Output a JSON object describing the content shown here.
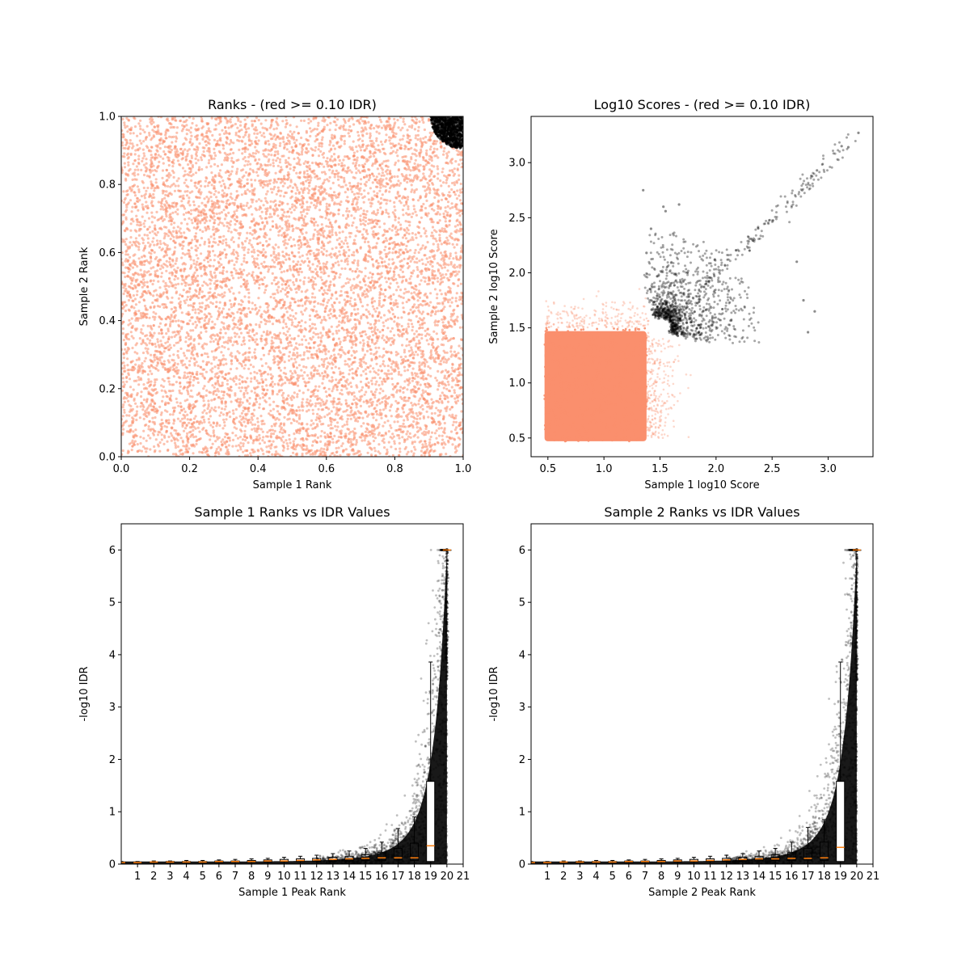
{
  "figure": {
    "background": "#ffffff",
    "colors": {
      "below_threshold": "#fa8f6d",
      "above_threshold": "#000000",
      "median": "#ff7f0e"
    }
  },
  "chart_data": [
    {
      "id": "ranks",
      "type": "scatter",
      "title": "Ranks - (red >= 0.10 IDR)",
      "xlabel": "Sample 1 Rank",
      "ylabel": "Sample 2 Rank",
      "xlim": [
        0,
        1
      ],
      "ylim": [
        0,
        1
      ],
      "xticks": [
        "0.0",
        "0.2",
        "0.4",
        "0.6",
        "0.8",
        "1.0"
      ],
      "yticks": [
        "0.0",
        "0.2",
        "0.4",
        "0.6",
        "0.8",
        "1.0"
      ],
      "grid": false,
      "series": [
        {
          "color": "#fa8f6d",
          "description_region": {
            "x": [
              0,
              1
            ],
            "y": [
              0,
              1
            ]
          }
        },
        {
          "color": "#000000",
          "description_region": {
            "corner": [
              1,
              1
            ],
            "radius": 0.09
          }
        }
      ]
    },
    {
      "id": "scores",
      "type": "scatter",
      "title": "Log10 Scores - (red >= 0.10 IDR)",
      "xlabel": "Sample 1 log10 Score",
      "ylabel": "Sample 2 log10 Score",
      "xlim": [
        0.35,
        3.4
      ],
      "ylim": [
        0.33,
        3.42
      ],
      "xticks": [
        "0.5",
        "1.0",
        "1.5",
        "2.0",
        "2.5",
        "3.0"
      ],
      "yticks": [
        "0.5",
        "1.0",
        "1.5",
        "2.0",
        "2.5",
        "3.0"
      ],
      "grid": false,
      "series": [
        {
          "color": "#fa8f6d",
          "dense_region": {
            "x": [
              0.47,
              1.38
            ],
            "y": [
              0.47,
              1.5
            ]
          }
        },
        {
          "color": "#000000",
          "region": {
            "x": [
              1.35,
              3.28
            ],
            "y": [
              1.35,
              3.28
            ]
          }
        }
      ],
      "outlier_points": [
        [
          3.27,
          3.27
        ],
        [
          3.18,
          3.14
        ],
        [
          3.12,
          3.15
        ],
        [
          2.9,
          2.93
        ],
        [
          2.85,
          2.88
        ],
        [
          2.72,
          2.1
        ],
        [
          2.82,
          1.46
        ],
        [
          2.78,
          1.75
        ],
        [
          2.88,
          1.65
        ],
        [
          1.67,
          2.62
        ],
        [
          1.55,
          2.56
        ],
        [
          1.42,
          2.4
        ],
        [
          1.38,
          2.18
        ],
        [
          1.53,
          2.6
        ],
        [
          1.35,
          2.75
        ]
      ]
    },
    {
      "id": "s1_idr",
      "type": "scatter",
      "title": "Sample 1 Ranks vs IDR Values",
      "xlabel": "Sample 1 Peak Rank",
      "ylabel": "-log10 IDR",
      "xlim": [
        0,
        21
      ],
      "ylim": [
        0,
        6.5
      ],
      "xticks": [
        "1",
        "2",
        "3",
        "4",
        "5",
        "6",
        "7",
        "8",
        "9",
        "10",
        "11",
        "12",
        "13",
        "14",
        "15",
        "16",
        "17",
        "18",
        "19",
        "20",
        "21"
      ],
      "yticks": [
        "0",
        "1",
        "2",
        "3",
        "4",
        "5",
        "6"
      ],
      "grid": false,
      "boxplots": [
        {
          "pos": 1,
          "q1": 0.02,
          "median": 0.03,
          "q3": 0.04,
          "whisker_low": 0.0,
          "whisker_high": 0.05
        },
        {
          "pos": 2,
          "q1": 0.03,
          "median": 0.03,
          "q3": 0.04,
          "whisker_low": 0.0,
          "whisker_high": 0.05
        },
        {
          "pos": 3,
          "q1": 0.03,
          "median": 0.04,
          "q3": 0.04,
          "whisker_low": 0.0,
          "whisker_high": 0.06
        },
        {
          "pos": 4,
          "q1": 0.03,
          "median": 0.04,
          "q3": 0.05,
          "whisker_low": 0.0,
          "whisker_high": 0.06
        },
        {
          "pos": 5,
          "q1": 0.03,
          "median": 0.04,
          "q3": 0.05,
          "whisker_low": 0.0,
          "whisker_high": 0.07
        },
        {
          "pos": 6,
          "q1": 0.03,
          "median": 0.04,
          "q3": 0.05,
          "whisker_low": 0.0,
          "whisker_high": 0.07
        },
        {
          "pos": 7,
          "q1": 0.03,
          "median": 0.05,
          "q3": 0.06,
          "whisker_low": 0.0,
          "whisker_high": 0.08
        },
        {
          "pos": 8,
          "q1": 0.04,
          "median": 0.05,
          "q3": 0.06,
          "whisker_low": 0.0,
          "whisker_high": 0.09
        },
        {
          "pos": 9,
          "q1": 0.04,
          "median": 0.05,
          "q3": 0.07,
          "whisker_low": 0.0,
          "whisker_high": 0.1
        },
        {
          "pos": 10,
          "q1": 0.04,
          "median": 0.06,
          "q3": 0.08,
          "whisker_low": 0.0,
          "whisker_high": 0.11
        },
        {
          "pos": 11,
          "q1": 0.05,
          "median": 0.06,
          "q3": 0.09,
          "whisker_low": 0.0,
          "whisker_high": 0.13
        },
        {
          "pos": 12,
          "q1": 0.05,
          "median": 0.07,
          "q3": 0.1,
          "whisker_low": 0.0,
          "whisker_high": 0.15
        },
        {
          "pos": 13,
          "q1": 0.05,
          "median": 0.08,
          "q3": 0.11,
          "whisker_low": 0.0,
          "whisker_high": 0.17
        },
        {
          "pos": 14,
          "q1": 0.06,
          "median": 0.09,
          "q3": 0.13,
          "whisker_low": 0.0,
          "whisker_high": 0.2
        },
        {
          "pos": 15,
          "q1": 0.06,
          "median": 0.1,
          "q3": 0.15,
          "whisker_low": 0.0,
          "whisker_high": 0.25
        },
        {
          "pos": 16,
          "q1": 0.07,
          "median": 0.11,
          "q3": 0.18,
          "whisker_low": 0.0,
          "whisker_high": 0.3
        },
        {
          "pos": 17,
          "q1": 0.07,
          "median": 0.12,
          "q3": 0.22,
          "whisker_low": 0.0,
          "whisker_high": 0.42
        },
        {
          "pos": 18,
          "q1": 0.08,
          "median": 0.12,
          "q3": 0.3,
          "whisker_low": 0.0,
          "whisker_high": 0.68
        },
        {
          "pos": 19,
          "q1": 0.07,
          "median": 0.12,
          "q3": 0.4,
          "whisker_low": 0.0,
          "whisker_high": 0.9
        },
        {
          "pos": 20,
          "q1": 0.05,
          "median": 0.35,
          "q3": 1.58,
          "whisker_low": 0.0,
          "whisker_high": 3.86
        },
        {
          "pos": 21,
          "q1": 6.0,
          "median": 6.0,
          "q3": 6.0,
          "whisker_low": 6.0,
          "whisker_high": 6.0
        }
      ],
      "scatter_shape": "exponential rise from ~0.05 at rank 0 to 6.0 at rank 20"
    },
    {
      "id": "s2_idr",
      "type": "scatter",
      "title": "Sample 2 Ranks vs IDR Values",
      "xlabel": "Sample 2 Peak Rank",
      "ylabel": "-log10 IDR",
      "xlim": [
        0,
        21
      ],
      "ylim": [
        0,
        6.5
      ],
      "xticks": [
        "1",
        "2",
        "3",
        "4",
        "5",
        "6",
        "7",
        "8",
        "9",
        "10",
        "11",
        "12",
        "13",
        "14",
        "15",
        "16",
        "17",
        "18",
        "19",
        "20",
        "21"
      ],
      "yticks": [
        "0",
        "1",
        "2",
        "3",
        "4",
        "5",
        "6"
      ],
      "grid": false,
      "boxplots": [
        {
          "pos": 1,
          "q1": 0.02,
          "median": 0.03,
          "q3": 0.04,
          "whisker_low": 0.0,
          "whisker_high": 0.05
        },
        {
          "pos": 2,
          "q1": 0.03,
          "median": 0.03,
          "q3": 0.04,
          "whisker_low": 0.0,
          "whisker_high": 0.05
        },
        {
          "pos": 3,
          "q1": 0.03,
          "median": 0.04,
          "q3": 0.04,
          "whisker_low": 0.0,
          "whisker_high": 0.06
        },
        {
          "pos": 4,
          "q1": 0.03,
          "median": 0.04,
          "q3": 0.05,
          "whisker_low": 0.0,
          "whisker_high": 0.06
        },
        {
          "pos": 5,
          "q1": 0.03,
          "median": 0.04,
          "q3": 0.05,
          "whisker_low": 0.0,
          "whisker_high": 0.07
        },
        {
          "pos": 6,
          "q1": 0.03,
          "median": 0.04,
          "q3": 0.05,
          "whisker_low": 0.0,
          "whisker_high": 0.07
        },
        {
          "pos": 7,
          "q1": 0.03,
          "median": 0.05,
          "q3": 0.06,
          "whisker_low": 0.0,
          "whisker_high": 0.08
        },
        {
          "pos": 8,
          "q1": 0.04,
          "median": 0.05,
          "q3": 0.06,
          "whisker_low": 0.0,
          "whisker_high": 0.09
        },
        {
          "pos": 9,
          "q1": 0.04,
          "median": 0.05,
          "q3": 0.07,
          "whisker_low": 0.0,
          "whisker_high": 0.1
        },
        {
          "pos": 10,
          "q1": 0.04,
          "median": 0.06,
          "q3": 0.08,
          "whisker_low": 0.0,
          "whisker_high": 0.11
        },
        {
          "pos": 11,
          "q1": 0.05,
          "median": 0.06,
          "q3": 0.09,
          "whisker_low": 0.0,
          "whisker_high": 0.13
        },
        {
          "pos": 12,
          "q1": 0.05,
          "median": 0.07,
          "q3": 0.1,
          "whisker_low": 0.0,
          "whisker_high": 0.15
        },
        {
          "pos": 13,
          "q1": 0.05,
          "median": 0.08,
          "q3": 0.11,
          "whisker_low": 0.0,
          "whisker_high": 0.17
        },
        {
          "pos": 14,
          "q1": 0.06,
          "median": 0.09,
          "q3": 0.13,
          "whisker_low": 0.0,
          "whisker_high": 0.2
        },
        {
          "pos": 15,
          "q1": 0.06,
          "median": 0.1,
          "q3": 0.15,
          "whisker_low": 0.0,
          "whisker_high": 0.25
        },
        {
          "pos": 16,
          "q1": 0.07,
          "median": 0.1,
          "q3": 0.18,
          "whisker_low": 0.0,
          "whisker_high": 0.3
        },
        {
          "pos": 17,
          "q1": 0.07,
          "median": 0.11,
          "q3": 0.22,
          "whisker_low": 0.0,
          "whisker_high": 0.42
        },
        {
          "pos": 18,
          "q1": 0.08,
          "median": 0.11,
          "q3": 0.3,
          "whisker_low": 0.0,
          "whisker_high": 0.7
        },
        {
          "pos": 19,
          "q1": 0.07,
          "median": 0.12,
          "q3": 0.42,
          "whisker_low": 0.0,
          "whisker_high": 0.85
        },
        {
          "pos": 20,
          "q1": 0.05,
          "median": 0.32,
          "q3": 1.58,
          "whisker_low": 0.0,
          "whisker_high": 3.86
        },
        {
          "pos": 21,
          "q1": 6.0,
          "median": 6.0,
          "q3": 6.0,
          "whisker_low": 6.0,
          "whisker_high": 6.0
        }
      ],
      "scatter_shape": "exponential rise from ~0.05 at rank 0 to 6.0 at rank 20"
    }
  ]
}
